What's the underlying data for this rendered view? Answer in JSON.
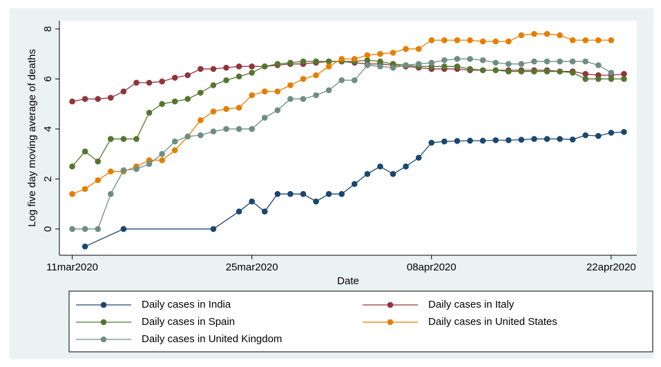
{
  "chart_data": {
    "type": "line",
    "x_label": "Date",
    "y_label": "Log five day moving average of deaths",
    "x": [
      "2020-03-11",
      "2020-03-12",
      "2020-03-13",
      "2020-03-14",
      "2020-03-15",
      "2020-03-16",
      "2020-03-17",
      "2020-03-18",
      "2020-03-19",
      "2020-03-20",
      "2020-03-21",
      "2020-03-22",
      "2020-03-23",
      "2020-03-24",
      "2020-03-25",
      "2020-03-26",
      "2020-03-27",
      "2020-03-28",
      "2020-03-29",
      "2020-03-30",
      "2020-03-31",
      "2020-04-01",
      "2020-04-02",
      "2020-04-03",
      "2020-04-04",
      "2020-04-05",
      "2020-04-06",
      "2020-04-07",
      "2020-04-08",
      "2020-04-09",
      "2020-04-10",
      "2020-04-11",
      "2020-04-12",
      "2020-04-13",
      "2020-04-14",
      "2020-04-15",
      "2020-04-16",
      "2020-04-17",
      "2020-04-18",
      "2020-04-19",
      "2020-04-20",
      "2020-04-21",
      "2020-04-22",
      "2020-04-23"
    ],
    "xlim": [
      "2020-03-10",
      "2020-04-24"
    ],
    "xticks": [
      {
        "value": "2020-03-11",
        "label": "11mar2020"
      },
      {
        "value": "2020-03-25",
        "label": "25mar2020"
      },
      {
        "value": "2020-04-08",
        "label": "08apr2020"
      },
      {
        "value": "2020-04-22",
        "label": "22apr2020"
      }
    ],
    "ylim": [
      -1.05,
      8.33
    ],
    "yticks": [
      0,
      2,
      4,
      6,
      8
    ],
    "legend": "bottom",
    "series": [
      {
        "name": "Daily cases in India",
        "color": "#1a476f",
        "x": [
          "2020-03-12",
          "2020-03-15",
          "2020-03-22",
          "2020-03-24",
          "2020-03-25",
          "2020-03-26",
          "2020-03-27",
          "2020-03-28",
          "2020-03-29",
          "2020-03-30",
          "2020-03-31",
          "2020-04-01",
          "2020-04-02",
          "2020-04-03",
          "2020-04-04",
          "2020-04-05",
          "2020-04-06",
          "2020-04-07",
          "2020-04-08",
          "2020-04-09",
          "2020-04-10",
          "2020-04-11",
          "2020-04-12",
          "2020-04-13",
          "2020-04-14",
          "2020-04-15",
          "2020-04-16",
          "2020-04-17",
          "2020-04-18",
          "2020-04-19",
          "2020-04-20",
          "2020-04-21",
          "2020-04-22",
          "2020-04-23"
        ],
        "values": [
          -0.7,
          0,
          0,
          0.7,
          1.1,
          0.7,
          1.4,
          1.4,
          1.4,
          1.1,
          1.4,
          1.4,
          1.8,
          2.2,
          2.5,
          2.2,
          2.5,
          2.85,
          3.45,
          3.5,
          3.52,
          3.53,
          3.53,
          3.55,
          3.55,
          3.57,
          3.6,
          3.6,
          3.6,
          3.58,
          3.75,
          3.72,
          3.85,
          3.88
        ]
      },
      {
        "name": "Daily cases in Italy",
        "color": "#90353b",
        "values": [
          5.1,
          5.2,
          5.2,
          5.25,
          5.5,
          5.85,
          5.85,
          5.9,
          6.05,
          6.15,
          6.4,
          6.4,
          6.45,
          6.5,
          6.5,
          6.5,
          6.55,
          6.6,
          6.6,
          6.65,
          6.7,
          6.7,
          6.65,
          6.6,
          6.6,
          6.55,
          6.5,
          6.45,
          6.4,
          6.4,
          6.4,
          6.35,
          6.35,
          6.35,
          6.35,
          6.35,
          6.35,
          6.35,
          6.3,
          6.3,
          6.2,
          6.15,
          6.15,
          6.2
        ]
      },
      {
        "name": "Daily cases in Spain",
        "color": "#55752f",
        "values": [
          2.5,
          3.1,
          2.7,
          3.6,
          3.6,
          3.6,
          4.65,
          5.0,
          5.1,
          5.2,
          5.45,
          5.75,
          5.95,
          6.1,
          6.25,
          6.5,
          6.6,
          6.65,
          6.7,
          6.7,
          6.7,
          6.7,
          6.7,
          6.75,
          6.7,
          6.6,
          6.55,
          6.5,
          6.5,
          6.5,
          6.5,
          6.4,
          6.35,
          6.35,
          6.3,
          6.3,
          6.3,
          6.3,
          6.3,
          6.25,
          6.0,
          6.0,
          6.0,
          6.0
        ]
      },
      {
        "name": "Daily cases in United States",
        "color": "#e37e00",
        "values": [
          1.4,
          1.6,
          1.95,
          2.3,
          2.3,
          2.5,
          2.75,
          2.75,
          3.15,
          3.7,
          4.35,
          4.7,
          4.8,
          4.85,
          5.35,
          5.5,
          5.5,
          5.75,
          6.0,
          6.15,
          6.5,
          6.8,
          6.8,
          6.95,
          7.0,
          7.05,
          7.2,
          7.2,
          7.55,
          7.55,
          7.55,
          7.55,
          7.5,
          7.5,
          7.5,
          7.75,
          7.8,
          7.8,
          7.75,
          7.55,
          7.55,
          7.55,
          7.55,
          null
        ]
      },
      {
        "name": "Daily cases in United Kingdom",
        "color": "#6e8e84",
        "values": [
          0,
          0,
          0,
          1.4,
          2.35,
          2.4,
          2.6,
          3.0,
          3.5,
          3.7,
          3.75,
          3.9,
          4.0,
          4.0,
          4.0,
          4.45,
          4.75,
          5.2,
          5.2,
          5.35,
          5.55,
          5.95,
          5.95,
          6.55,
          6.5,
          6.45,
          6.55,
          6.6,
          6.65,
          6.75,
          6.8,
          6.8,
          6.75,
          6.65,
          6.6,
          6.6,
          6.7,
          6.7,
          6.7,
          6.7,
          6.7,
          6.55,
          6.25,
          null
        ]
      }
    ]
  }
}
